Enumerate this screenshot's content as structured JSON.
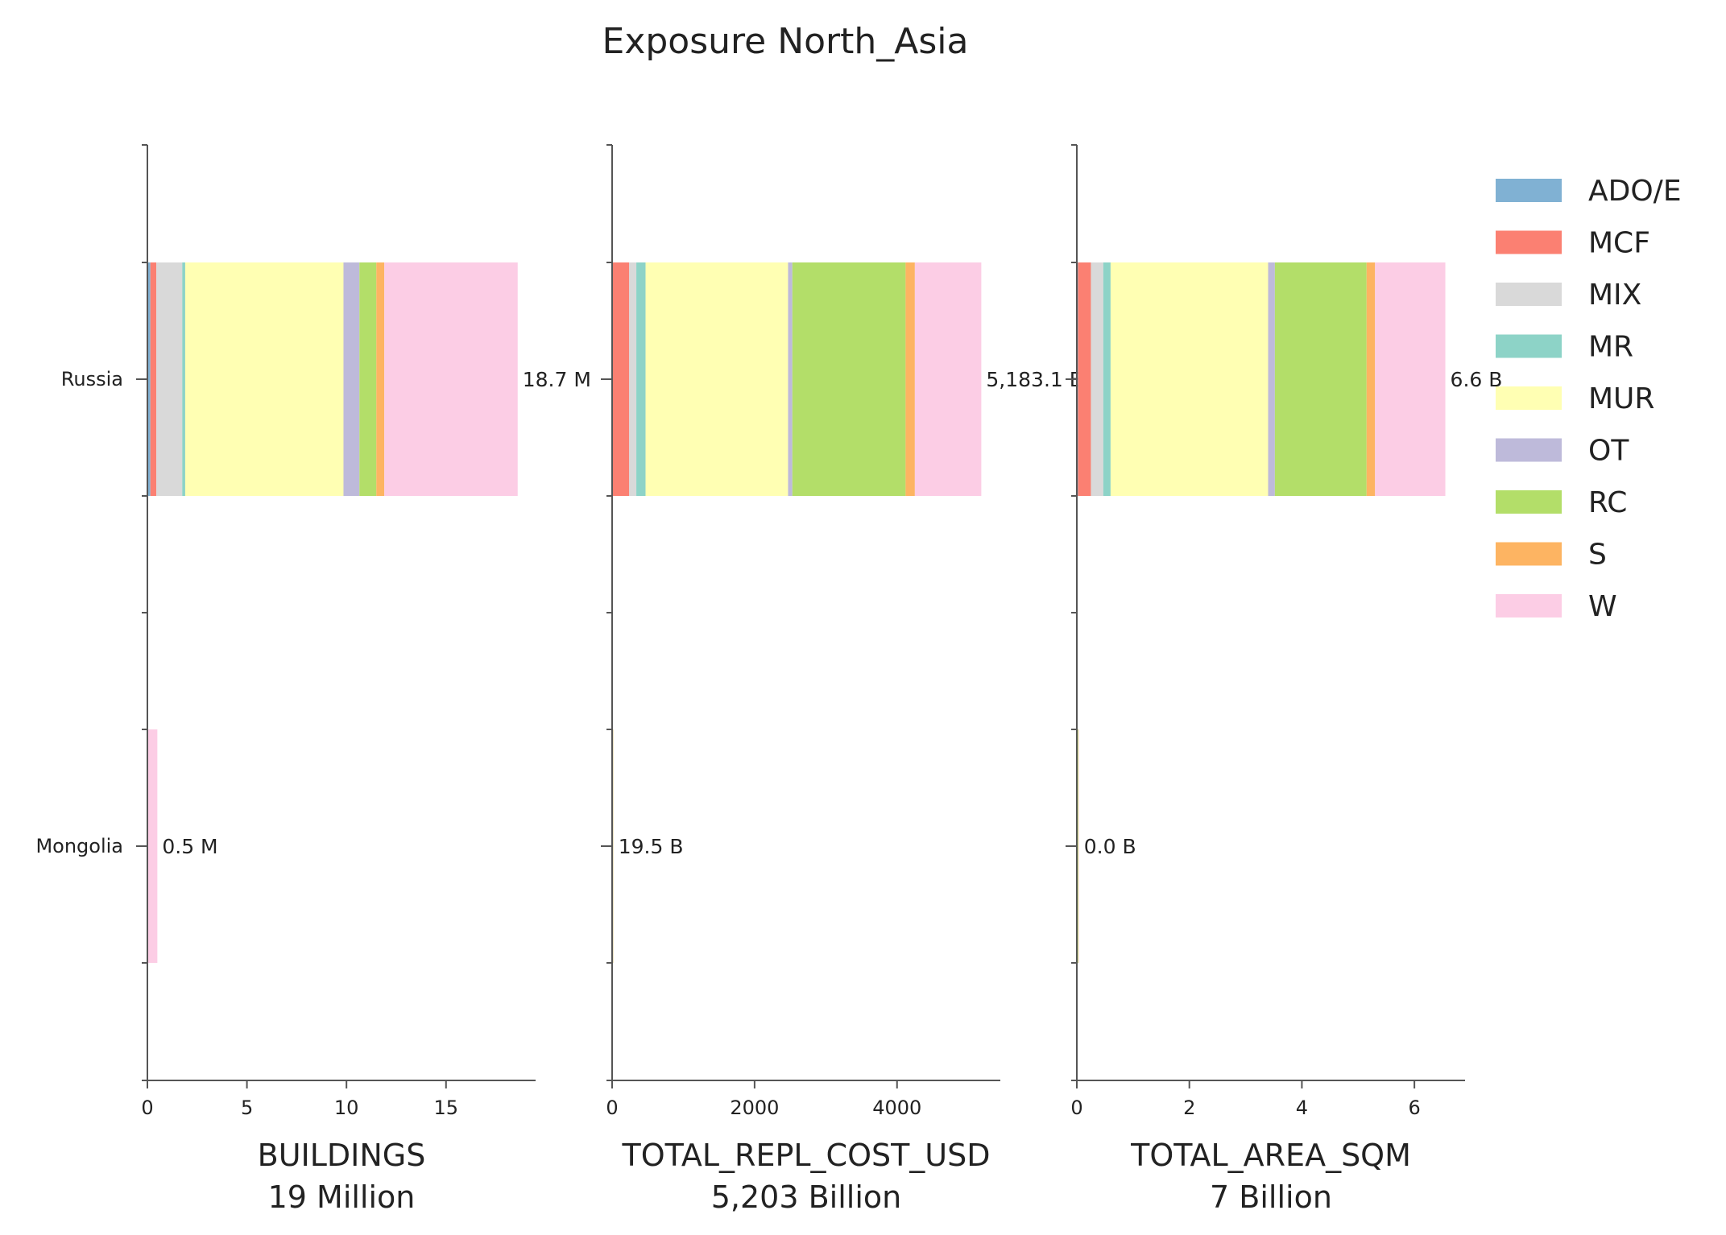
{
  "chart_data": {
    "type": "bar",
    "orientation": "horizontal",
    "stacked": true,
    "title": "Exposure North_Asia",
    "categories": [
      "Russia",
      "Mongolia"
    ],
    "legend": {
      "placement": "right",
      "entries": [
        {
          "name": "ADO/E",
          "color": "#80b1d3"
        },
        {
          "name": "MCF",
          "color": "#fb8072"
        },
        {
          "name": "MIX",
          "color": "#d9d9d9"
        },
        {
          "name": "MR",
          "color": "#8dd3c7"
        },
        {
          "name": "MUR",
          "color": "#ffffb3"
        },
        {
          "name": "OT",
          "color": "#bebada"
        },
        {
          "name": "RC",
          "color": "#b3de69"
        },
        {
          "name": "S",
          "color": "#fdb462"
        },
        {
          "name": "W",
          "color": "#fccde5"
        }
      ]
    },
    "panels": [
      {
        "xlabel": "BUILDINGS",
        "subtitle": "19 Million",
        "xlim": [
          0,
          19.5
        ],
        "xticks": [
          0,
          5,
          10,
          15
        ],
        "totals": [
          "18.7 M",
          "0.5 M"
        ],
        "values": {
          "Russia": [
            0.15,
            0.3,
            1.3,
            0.15,
            7.95,
            0.8,
            0.85,
            0.4,
            6.7
          ],
          "Mongolia": [
            0,
            0,
            0,
            0,
            0,
            0,
            0,
            0,
            0.5
          ]
        }
      },
      {
        "xlabel": "TOTAL_REPL_COST_USD",
        "subtitle": "5,203 Billion",
        "xlim": [
          0,
          5450
        ],
        "xticks": [
          0,
          2000,
          4000
        ],
        "totals": [
          "5,183.1 B",
          "19.5 B"
        ],
        "values": {
          "Russia": [
            10,
            230,
            100,
            130,
            2000,
            60,
            1590,
            130,
            933
          ],
          "Mongolia": [
            1,
            2,
            1,
            1,
            6,
            0.5,
            4,
            1,
            3
          ]
        }
      },
      {
        "xlabel": "TOTAL_AREA_SQM",
        "subtitle": "7 Billion",
        "xlim": [
          0,
          6.9
        ],
        "xticks": [
          0,
          2,
          4,
          6
        ],
        "totals": [
          "6.6 B",
          "0.0 B"
        ],
        "values": {
          "Russia": [
            0.02,
            0.23,
            0.22,
            0.13,
            2.8,
            0.12,
            1.63,
            0.15,
            1.25
          ],
          "Mongolia": [
            0,
            0.01,
            0,
            0,
            0.01,
            0,
            0.01,
            0,
            0.01
          ]
        }
      }
    ]
  }
}
